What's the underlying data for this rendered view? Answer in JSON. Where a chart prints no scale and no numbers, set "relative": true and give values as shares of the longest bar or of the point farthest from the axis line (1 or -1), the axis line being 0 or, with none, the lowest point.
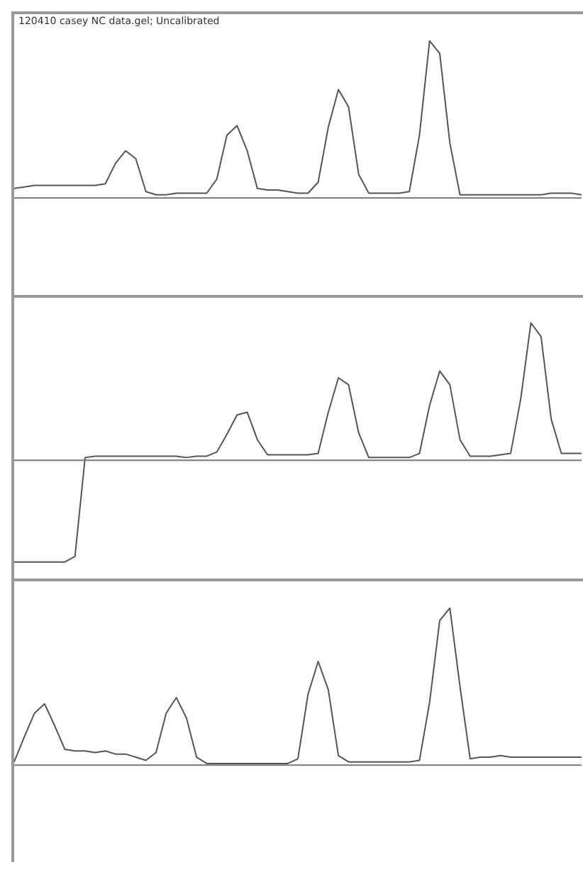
{
  "chart_data": [
    {
      "type": "line",
      "title": "120410 casey NC data.gel; Uncalibrated",
      "relative": true,
      "marker": "none",
      "categories": [
        null,
        null,
        null,
        null,
        null,
        null,
        null,
        null,
        null,
        null,
        null,
        null,
        null,
        null,
        null,
        null,
        null,
        null,
        null,
        null,
        null,
        null,
        null,
        null,
        null,
        null,
        null,
        null,
        null,
        null,
        null,
        null,
        null,
        null,
        null,
        null,
        null,
        null,
        null,
        null,
        null,
        null,
        null,
        null,
        null,
        null,
        null,
        null,
        null,
        null,
        null,
        null,
        null,
        null,
        null,
        null,
        null
      ],
      "series": [
        {
          "color": "#555555",
          "values": [
            0.06,
            0.07,
            0.08,
            0.08,
            0.08,
            0.08,
            0.08,
            0.08,
            0.08,
            0.09,
            0.22,
            0.3,
            0.25,
            0.04,
            0.02,
            0.02,
            0.03,
            0.03,
            0.03,
            0.03,
            0.12,
            0.4,
            0.46,
            0.3,
            0.06,
            0.05,
            0.05,
            0.04,
            0.03,
            0.03,
            0.1,
            0.45,
            0.69,
            0.58,
            0.15,
            0.03,
            0.03,
            0.03,
            0.03,
            0.04,
            0.4,
            1,
            0.92,
            0.35,
            0.02,
            0.02,
            0.02,
            0.02,
            0.02,
            0.02,
            0.02,
            0.02,
            0.02,
            0.03,
            0.03,
            0.03,
            0.02
          ]
        }
      ]
    },
    {
      "type": "line",
      "relative": true,
      "marker": "none",
      "categories": [
        null,
        null,
        null,
        null,
        null,
        null,
        null,
        null,
        null,
        null,
        null,
        null,
        null,
        null,
        null,
        null,
        null,
        null,
        null,
        null,
        null,
        null,
        null,
        null,
        null,
        null,
        null,
        null,
        null,
        null,
        null,
        null,
        null,
        null,
        null,
        null,
        null,
        null,
        null,
        null,
        null,
        null,
        null,
        null,
        null,
        null,
        null,
        null,
        null,
        null,
        null,
        null,
        null,
        null,
        null,
        null,
        null
      ],
      "series": [
        {
          "color": "#555555",
          "values": [
            -0.74,
            -0.74,
            -0.74,
            -0.74,
            -0.74,
            -0.74,
            -0.7,
            0.02,
            0.03,
            0.03,
            0.03,
            0.03,
            0.03,
            0.03,
            0.03,
            0.03,
            0.03,
            0.02,
            0.03,
            0.03,
            0.06,
            0.19,
            0.33,
            0.35,
            0.15,
            0.04,
            0.04,
            0.04,
            0.04,
            0.04,
            0.05,
            0.35,
            0.6,
            0.55,
            0.2,
            0.02,
            0.02,
            0.02,
            0.02,
            0.02,
            0.05,
            0.4,
            0.65,
            0.55,
            0.15,
            0.03,
            0.03,
            0.03,
            0.04,
            0.05,
            0.45,
            1,
            0.9,
            0.3,
            0.05,
            0.05,
            0.05
          ]
        }
      ]
    },
    {
      "type": "line",
      "relative": true,
      "marker": "none",
      "categories": [
        null,
        null,
        null,
        null,
        null,
        null,
        null,
        null,
        null,
        null,
        null,
        null,
        null,
        null,
        null,
        null,
        null,
        null,
        null,
        null,
        null,
        null,
        null,
        null,
        null,
        null,
        null,
        null,
        null,
        null,
        null,
        null,
        null,
        null,
        null,
        null,
        null,
        null,
        null,
        null,
        null,
        null,
        null,
        null,
        null,
        null,
        null,
        null,
        null,
        null,
        null,
        null,
        null,
        null,
        null,
        null,
        null
      ],
      "series": [
        {
          "color": "#555555",
          "values": [
            0.02,
            0.18,
            0.33,
            0.39,
            0.25,
            0.1,
            0.09,
            0.09,
            0.08,
            0.09,
            0.07,
            0.07,
            0.05,
            0.03,
            0.08,
            0.33,
            0.43,
            0.3,
            0.05,
            0.01,
            0.01,
            0.01,
            0.01,
            0.01,
            0.01,
            0.01,
            0.01,
            0.01,
            0.04,
            0.45,
            0.66,
            0.48,
            0.06,
            0.02,
            0.02,
            0.02,
            0.02,
            0.02,
            0.02,
            0.02,
            0.03,
            0.4,
            0.92,
            1,
            0.5,
            0.04,
            0.05,
            0.05,
            0.06,
            0.05,
            0.05,
            0.05,
            0.05,
            0.05,
            0.05,
            0.05,
            0.05
          ]
        }
      ]
    }
  ]
}
